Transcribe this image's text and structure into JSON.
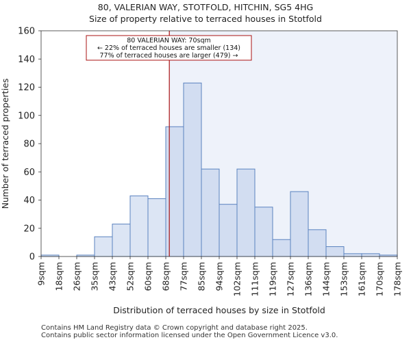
{
  "chart_data": {
    "type": "histogram",
    "title": "80, VALERIAN WAY, STOTFOLD, HITCHIN, SG5 4HG",
    "subtitle": "Size of property relative to terraced houses in Stotfold",
    "xlabel": "Distribution of terraced houses by size in Stotfold",
    "ylabel": "Number of terraced properties",
    "ylim": [
      0,
      160
    ],
    "yticks": [
      0,
      20,
      40,
      60,
      80,
      100,
      120,
      140,
      160
    ],
    "categories": [
      "9sqm",
      "18sqm",
      "26sqm",
      "35sqm",
      "43sqm",
      "52sqm",
      "60sqm",
      "68sqm",
      "77sqm",
      "85sqm",
      "94sqm",
      "102sqm",
      "111sqm",
      "119sqm",
      "127sqm",
      "136sqm",
      "144sqm",
      "153sqm",
      "161sqm",
      "170sqm",
      "178sqm"
    ],
    "values": [
      1,
      0,
      1,
      14,
      23,
      43,
      41,
      92,
      123,
      62,
      37,
      62,
      35,
      12,
      46,
      19,
      7,
      2,
      2,
      1
    ],
    "marker": {
      "label": "80 VALERIAN WAY: 70sqm",
      "bin_position": 7.2,
      "color": "#aa1111"
    },
    "annotation": {
      "lines": [
        "80 VALERIAN WAY: 70sqm",
        "← 22% of terraced houses are smaller (134)",
        "77% of terraced houses are larger (479) →"
      ]
    },
    "colors": {
      "bar_left": "#dce5f4",
      "bar_right": "#d2ddf1",
      "bar_edge": "#5a82bf",
      "highlight_bg": "#eef2fa",
      "marker": "#aa1111"
    }
  },
  "footer": {
    "line1": "Contains HM Land Registry data © Crown copyright and database right 2025.",
    "line2": "Contains public sector information licensed under the Open Government Licence v3.0."
  }
}
